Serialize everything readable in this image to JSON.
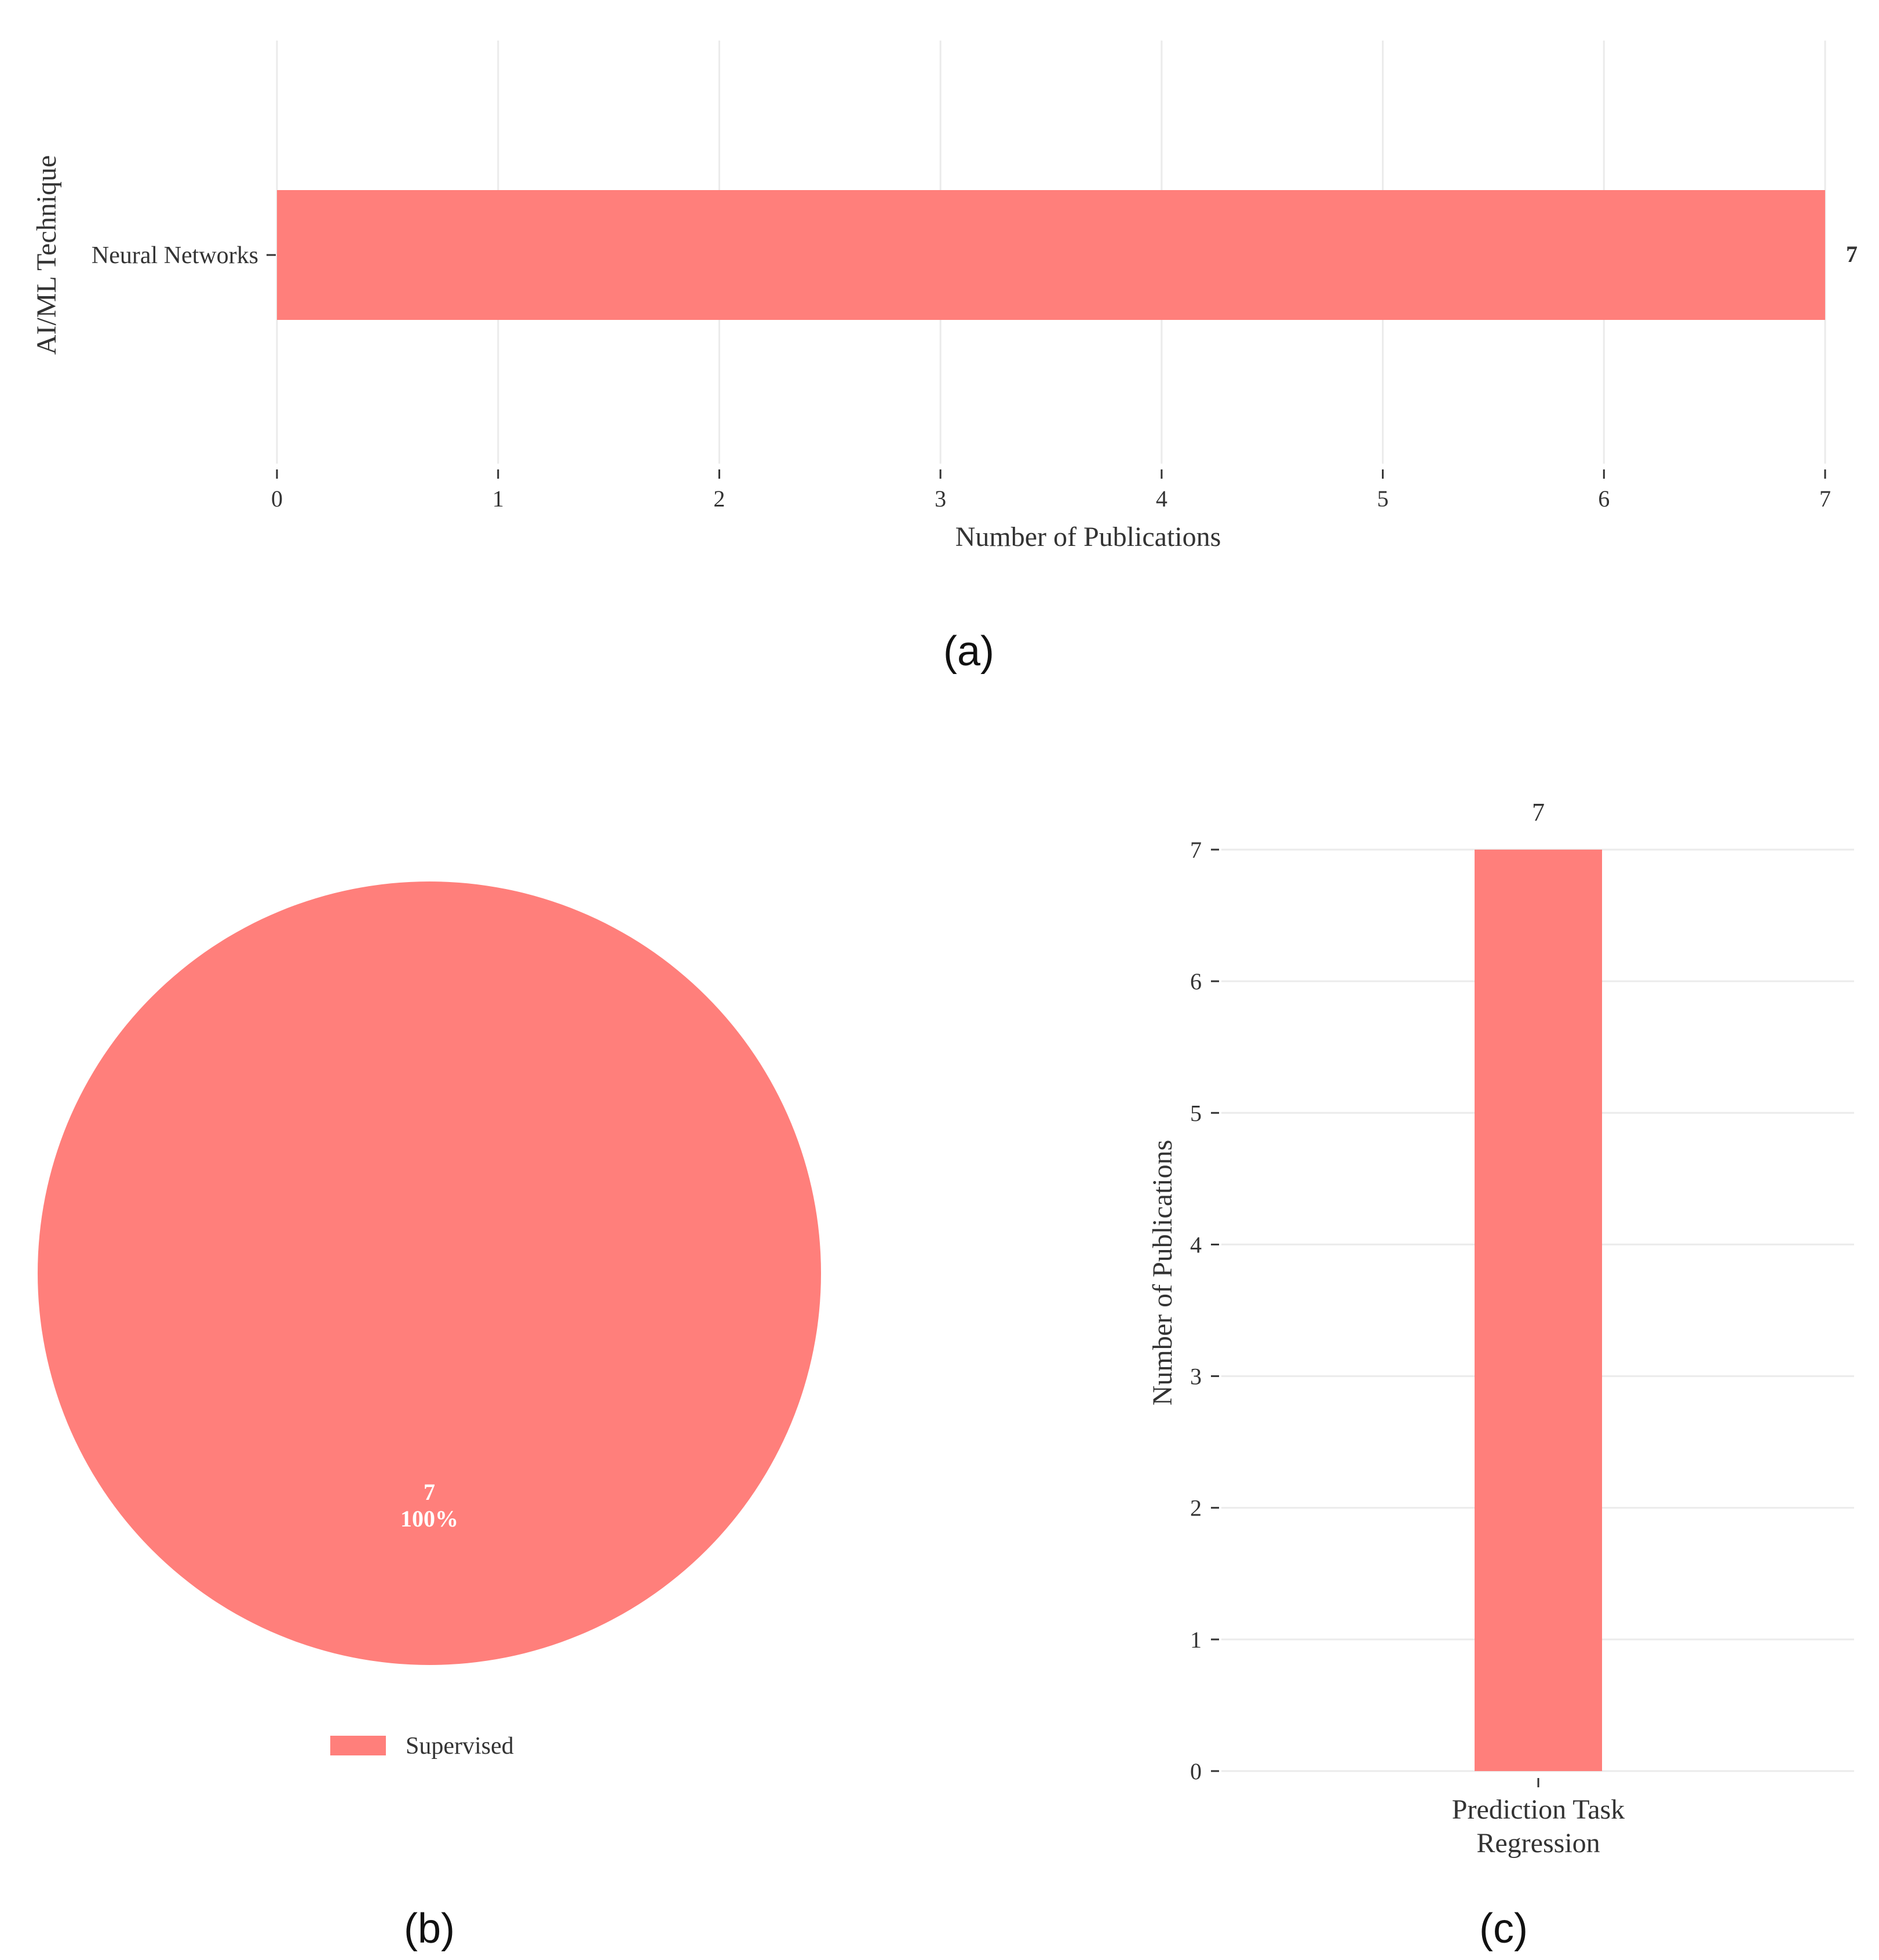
{
  "colors": {
    "bar": "#ff7f7b",
    "grid": "#ebebeb",
    "tick": "#333333"
  },
  "chart_data": [
    {
      "id": "a",
      "type": "bar",
      "orientation": "horizontal",
      "categories": [
        "Neural Networks"
      ],
      "values": [
        7
      ],
      "data_labels": [
        "7"
      ],
      "xlabel": "Number of Publications",
      "ylabel": "AI/ML Technique",
      "xlim": [
        0,
        7
      ],
      "xticks": [
        "0",
        "1",
        "2",
        "3",
        "4",
        "5",
        "6",
        "7"
      ],
      "grid": "vertical",
      "caption": "(a)"
    },
    {
      "id": "b",
      "type": "pie",
      "slices": [
        {
          "label": "Supervised",
          "value": 7,
          "percent": "100%"
        }
      ],
      "slice_label_value": "7",
      "slice_label_percent": "100%",
      "legend": [
        "Supervised"
      ],
      "legend_position": "bottom",
      "caption": "(b)"
    },
    {
      "id": "c",
      "type": "bar",
      "orientation": "vertical",
      "categories": [
        "Prediction Task Regression"
      ],
      "category_label_lines": [
        "Prediction Task",
        "Regression"
      ],
      "values": [
        7
      ],
      "data_labels": [
        "7"
      ],
      "ylabel": "Number of Publications",
      "ylim": [
        0,
        7
      ],
      "yticks": [
        "0",
        "1",
        "2",
        "3",
        "4",
        "5",
        "6",
        "7"
      ],
      "grid": "horizontal",
      "caption": "(c)"
    }
  ]
}
